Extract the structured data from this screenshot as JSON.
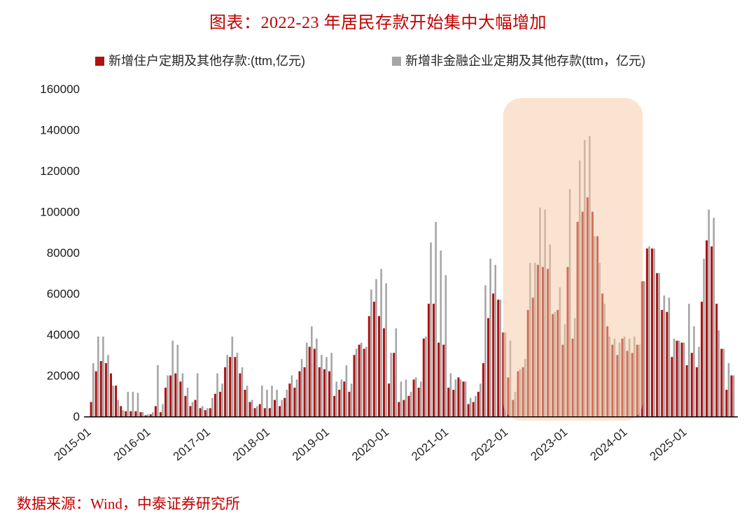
{
  "page": {
    "title": "图表：2022-23 年居民存款开始集中大幅增加",
    "source": "数据来源：Wind，中泰证券研究所"
  },
  "chart_data": {
    "type": "bar",
    "title": "图表：2022-23 年居民存款开始集中大幅增加",
    "ylabel": "",
    "xlabel": "",
    "ylim": [
      0,
      160000
    ],
    "yticks": [
      0,
      20000,
      40000,
      60000,
      80000,
      100000,
      120000,
      140000,
      160000
    ],
    "months_start": "2015-01",
    "x_tick_labels": [
      "2015-01",
      "2016-01",
      "2017-01",
      "2018-01",
      "2019-01",
      "2020-01",
      "2021-01",
      "2022-01",
      "2023-01",
      "2024-01",
      "2025-01"
    ],
    "grid": "off",
    "legend_position": "top",
    "highlight": {
      "from": "2022-01",
      "to": "2024-03",
      "color": "#f5c9a4",
      "opacity": 0.5
    },
    "series": [
      {
        "name": "新增住户定期及其他存款:(ttm,亿元)",
        "color": "#b01212",
        "values": [
          7000,
          22000,
          27000,
          26000,
          21000,
          15000,
          5000,
          2500,
          2500,
          2500,
          2000,
          500,
          1000,
          5000,
          2000,
          14000,
          20000,
          21000,
          17000,
          10000,
          5000,
          8000,
          4000,
          3000,
          4000,
          11000,
          12000,
          24000,
          29000,
          29000,
          21000,
          13000,
          7000,
          4000,
          6000,
          4000,
          4000,
          8000,
          5000,
          9000,
          16000,
          14000,
          22000,
          24000,
          34000,
          33000,
          24000,
          23000,
          22000,
          10000,
          13000,
          17000,
          12000,
          30000,
          35000,
          33000,
          49000,
          56000,
          49000,
          43000,
          16000,
          31000,
          7000,
          8000,
          10000,
          18000,
          14000,
          38000,
          55000,
          55000,
          36000,
          35000,
          14000,
          13000,
          19000,
          17000,
          6000,
          7000,
          12000,
          26000,
          48000,
          60000,
          57000,
          41000,
          19000,
          8000,
          22000,
          24000,
          52000,
          58000,
          74000,
          73000,
          72000,
          50000,
          52000,
          35000,
          73000,
          38000,
          95000,
          100000,
          107000,
          100000,
          88000,
          60000,
          44000,
          35000,
          30000,
          38000,
          32000,
          31000,
          35000,
          66000,
          82000,
          82000,
          70000,
          52000,
          51000,
          29000,
          37000,
          36000,
          25000,
          31000,
          24000,
          56000,
          86000,
          83000,
          55000,
          33000,
          13000,
          20000
        ]
      },
      {
        "name": "新增非金融企业定期及其他存款(ttm，亿元)",
        "color": "#a6a6a6",
        "values": [
          26000,
          39000,
          39000,
          30000,
          15000,
          8000,
          3000,
          12000,
          12000,
          11500,
          2000,
          1000,
          2000,
          25000,
          6000,
          20000,
          37000,
          35000,
          21000,
          14000,
          7000,
          21000,
          5000,
          4000,
          9000,
          21000,
          16000,
          30000,
          39000,
          31000,
          24000,
          15000,
          8000,
          5000,
          15000,
          13000,
          15000,
          13000,
          8000,
          13000,
          20000,
          18000,
          28000,
          36000,
          44000,
          38000,
          30000,
          29000,
          31000,
          17000,
          18000,
          25000,
          16000,
          33000,
          36000,
          34000,
          62000,
          67000,
          72000,
          65000,
          31000,
          43000,
          17000,
          18000,
          12000,
          19000,
          17000,
          39000,
          85000,
          95000,
          81000,
          69000,
          21000,
          18000,
          18000,
          17000,
          9000,
          10000,
          16000,
          64000,
          77000,
          74000,
          57000,
          41000,
          37000,
          12000,
          23000,
          28000,
          75000,
          75000,
          102000,
          101000,
          84000,
          51000,
          63000,
          45000,
          111000,
          48000,
          125000,
          135000,
          137000,
          88000,
          75000,
          55000,
          39000,
          38000,
          36000,
          39000,
          38000,
          39000,
          35000,
          66000,
          83000,
          82000,
          70000,
          59000,
          58000,
          38000,
          37000,
          36000,
          55000,
          44000,
          34000,
          77000,
          101000,
          97000,
          42000,
          33000,
          26000,
          20000
        ]
      }
    ]
  }
}
